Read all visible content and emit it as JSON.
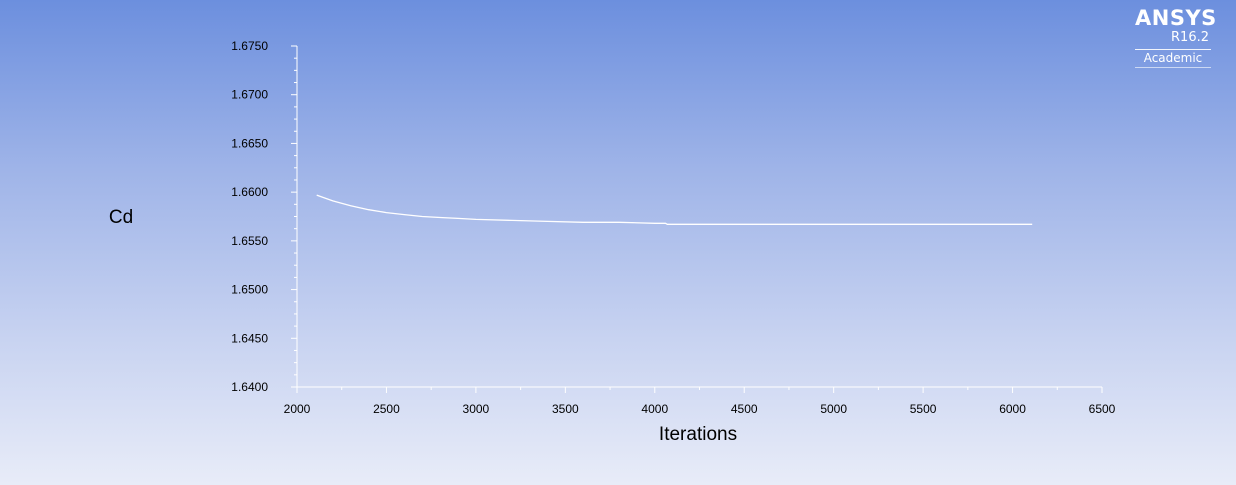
{
  "chart_data": {
    "type": "line",
    "title": "",
    "xlabel": "Iterations",
    "ylabel": "Cd",
    "xlim": [
      2000,
      6500
    ],
    "ylim": [
      1.64,
      1.675
    ],
    "x_ticks": [
      "2000",
      "2500",
      "3000",
      "3500",
      "4000",
      "4500",
      "5000",
      "5500",
      "6000",
      "6500"
    ],
    "y_ticks": [
      "1.6750",
      "1.6700",
      "1.6650",
      "1.6600",
      "1.6550",
      "1.6500",
      "1.6450",
      "1.6400"
    ],
    "grid": false,
    "legend": "none",
    "series": [
      {
        "color": "#ffffff",
        "x": [
          2110,
          2200,
          2300,
          2400,
          2500,
          2600,
          2700,
          2800,
          2900,
          3000,
          3200,
          3400,
          3600,
          3800,
          4000,
          4060,
          4070,
          4300,
          4600,
          5000,
          5400,
          5800,
          6110
        ],
        "y": [
          1.6597,
          1.6591,
          1.6586,
          1.6582,
          1.6579,
          1.6577,
          1.6575,
          1.6574,
          1.6573,
          1.6572,
          1.6571,
          1.657,
          1.6569,
          1.6569,
          1.6568,
          1.6568,
          1.6567,
          1.6567,
          1.6567,
          1.6567,
          1.6567,
          1.6567,
          1.6567
        ]
      }
    ]
  },
  "branding": {
    "name": "ANSYS",
    "version": "R16.2",
    "edition": "Academic"
  }
}
